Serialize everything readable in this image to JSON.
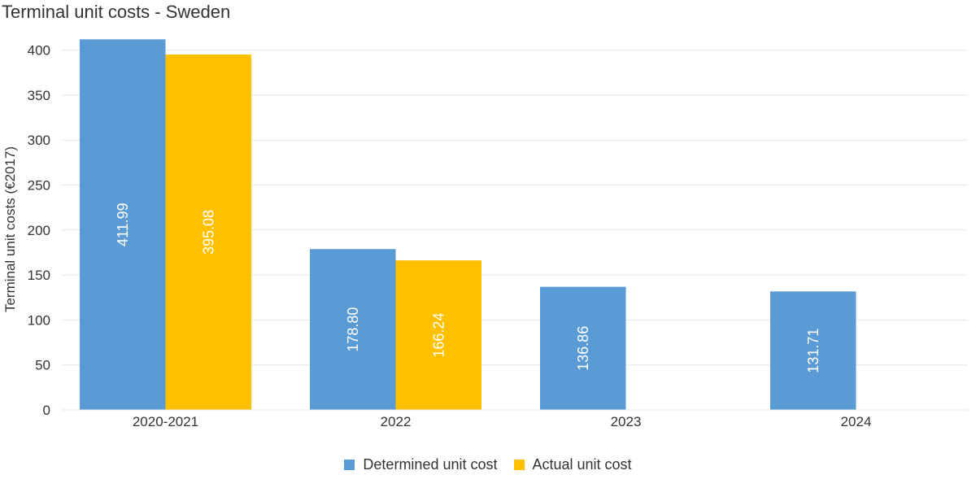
{
  "chart_data": {
    "type": "bar",
    "title": "Terminal unit costs - Sweden",
    "xlabel": "",
    "ylabel": "Terminal unit costs (€2017)",
    "categories": [
      "2020-2021",
      "2022",
      "2023",
      "2024"
    ],
    "series": [
      {
        "name": "Determined unit cost",
        "color": "#5B9BD5",
        "values": [
          411.99,
          178.8,
          136.86,
          131.71
        ],
        "labels": [
          "411.99",
          "178.80",
          "136.86",
          "131.71"
        ]
      },
      {
        "name": "Actual unit cost",
        "color": "#FFC000",
        "values": [
          395.08,
          166.24,
          null,
          null
        ],
        "labels": [
          "395.08",
          "166.24",
          null,
          null
        ]
      }
    ],
    "ylim": [
      0,
      420
    ],
    "yticks": [
      0,
      50,
      100,
      150,
      200,
      250,
      300,
      350,
      400
    ],
    "grid": true,
    "legend_position": "bottom"
  }
}
